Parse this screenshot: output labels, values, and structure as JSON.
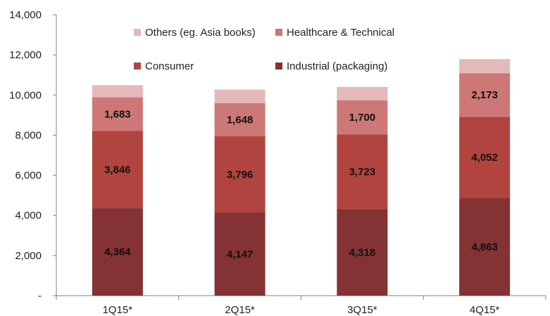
{
  "chart_data": {
    "type": "bar",
    "stacked": true,
    "categories": [
      "1Q15*",
      "2Q15*",
      "3Q15*",
      "4Q15*"
    ],
    "series": [
      {
        "name": "Industrial (packaging)",
        "values": [
          4364,
          4147,
          4318,
          4863
        ],
        "color": "#843233",
        "labeled": true
      },
      {
        "name": "Consumer",
        "values": [
          3846,
          3796,
          3723,
          4052
        ],
        "color": "#B2443F",
        "labeled": true
      },
      {
        "name": "Healthcare & Technical",
        "values": [
          1683,
          1648,
          1700,
          2173
        ],
        "color": "#CE7777",
        "labeled": true
      },
      {
        "name": "Others (eg. Asia books)",
        "values": [
          600,
          680,
          660,
          700
        ],
        "color": "#E5B8B9",
        "labeled": false
      }
    ],
    "ylim": [
      0,
      14000
    ],
    "yticks": [
      0,
      2000,
      4000,
      6000,
      8000,
      10000,
      12000,
      14000
    ],
    "ytick_labels": [
      "-",
      "2,000",
      "4,000",
      "6,000",
      "8,000",
      "10,000",
      "12,000",
      "14,000"
    ],
    "grid": false,
    "legend": "inside-top",
    "title": "",
    "xlabel": "",
    "ylabel": ""
  }
}
